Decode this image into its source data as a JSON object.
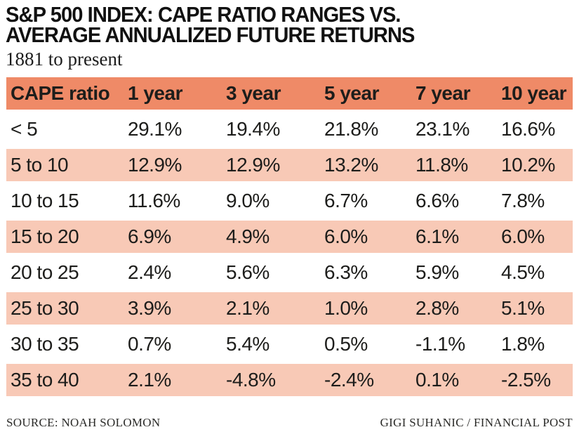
{
  "header": {
    "title_line1": "S&P 500 INDEX: CAPE RATIO RANGES VS.",
    "title_line2": "AVERAGE ANNUALIZED FUTURE RETURNS",
    "subtitle": "1881 to present"
  },
  "table": {
    "columns": [
      "CAPE ratio",
      "1 year",
      "3 year",
      "5 year",
      "7 year",
      "10 year"
    ],
    "rows": [
      [
        "< 5",
        "29.1%",
        "19.4%",
        "21.8%",
        "23.1%",
        "16.6%"
      ],
      [
        "5 to 10",
        "12.9%",
        "12.9%",
        "13.2%",
        "11.8%",
        "10.2%"
      ],
      [
        "10 to 15",
        "11.6%",
        "9.0%",
        "6.7%",
        "6.6%",
        "7.8%"
      ],
      [
        "15 to 20",
        "6.9%",
        "4.9%",
        "6.0%",
        "6.1%",
        "6.0%"
      ],
      [
        "20 to 25",
        "2.4%",
        "5.6%",
        "6.3%",
        "5.9%",
        "4.5%"
      ],
      [
        "25 to 30",
        "3.9%",
        "2.1%",
        "1.0%",
        "2.8%",
        "5.1%"
      ],
      [
        "30 to 35",
        "0.7%",
        "5.4%",
        "0.5%",
        "-1.1%",
        "1.8%"
      ],
      [
        "35 to 40",
        "2.1%",
        "-4.8%",
        "-2.4%",
        "0.1%",
        "-2.5%"
      ]
    ]
  },
  "footer": {
    "source": "SOURCE: NOAH SOLOMON",
    "credit": "GIGI SUHANIC / FINANCIAL POST"
  },
  "colors": {
    "header_row_bg": "#EF8A67",
    "shaded_row_bg": "#F8C9B6",
    "text": "#1D1D1B"
  },
  "chart_data": {
    "type": "table",
    "title": "S&P 500 INDEX: CAPE RATIO RANGES VS. AVERAGE ANNUALIZED FUTURE RETURNS",
    "subtitle": "1881 to present",
    "row_label": "CAPE ratio",
    "categories": [
      "< 5",
      "5 to 10",
      "10 to 15",
      "15 to 20",
      "20 to 25",
      "25 to 30",
      "30 to 35",
      "35 to 40"
    ],
    "series": [
      {
        "name": "1 year",
        "values": [
          29.1,
          12.9,
          11.6,
          6.9,
          2.4,
          3.9,
          0.7,
          2.1
        ]
      },
      {
        "name": "3 year",
        "values": [
          19.4,
          12.9,
          9.0,
          4.9,
          5.6,
          2.1,
          5.4,
          -4.8
        ]
      },
      {
        "name": "5 year",
        "values": [
          21.8,
          13.2,
          6.7,
          6.0,
          6.3,
          1.0,
          0.5,
          -2.4
        ]
      },
      {
        "name": "7 year",
        "values": [
          23.1,
          11.8,
          6.6,
          6.1,
          5.9,
          2.8,
          -1.1,
          0.1
        ]
      },
      {
        "name": "10 year",
        "values": [
          16.6,
          10.2,
          7.8,
          6.0,
          4.5,
          5.1,
          1.8,
          -2.5
        ]
      }
    ],
    "unit": "%"
  }
}
